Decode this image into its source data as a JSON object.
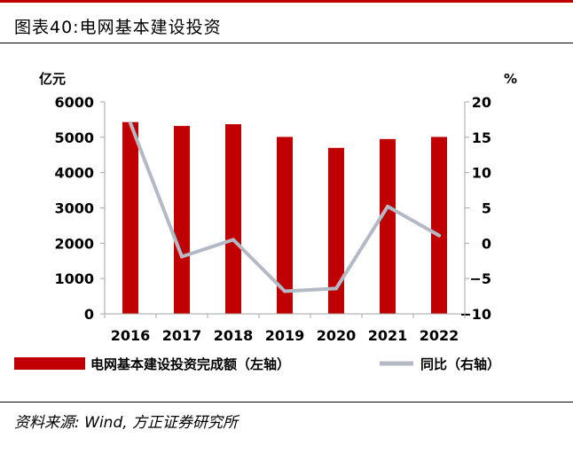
{
  "figure": {
    "title": "图表40:电网基本建设投资",
    "source": "资料来源: Wind, 方正证券研究所"
  },
  "chart_data": {
    "type": "bar",
    "categories": [
      "2016",
      "2017",
      "2018",
      "2019",
      "2020",
      "2021",
      "2022"
    ],
    "series": [
      {
        "name": "电网基本建设投资完成额（左轴）",
        "type": "bar",
        "axis": "left",
        "color": "#c00000",
        "values": [
          5430,
          5320,
          5370,
          5010,
          4700,
          4950,
          5010
        ]
      },
      {
        "name": "同比（右轴）",
        "type": "line",
        "axis": "right",
        "color": "#b4bac5",
        "values": [
          17.0,
          -1.9,
          0.5,
          -6.8,
          -6.4,
          5.2,
          1.1
        ]
      }
    ],
    "left_axis": {
      "unit": "亿元",
      "ylim": [
        0,
        6000
      ],
      "ticks": [
        "6000",
        "5000",
        "4000",
        "3000",
        "2000",
        "1000",
        "0"
      ]
    },
    "right_axis": {
      "unit": "%",
      "ylim": [
        -10,
        20
      ],
      "ticks": [
        "20",
        "15",
        "10",
        "5",
        "0",
        "−5",
        "−10"
      ]
    },
    "legend_position": "bottom",
    "grid": false
  }
}
